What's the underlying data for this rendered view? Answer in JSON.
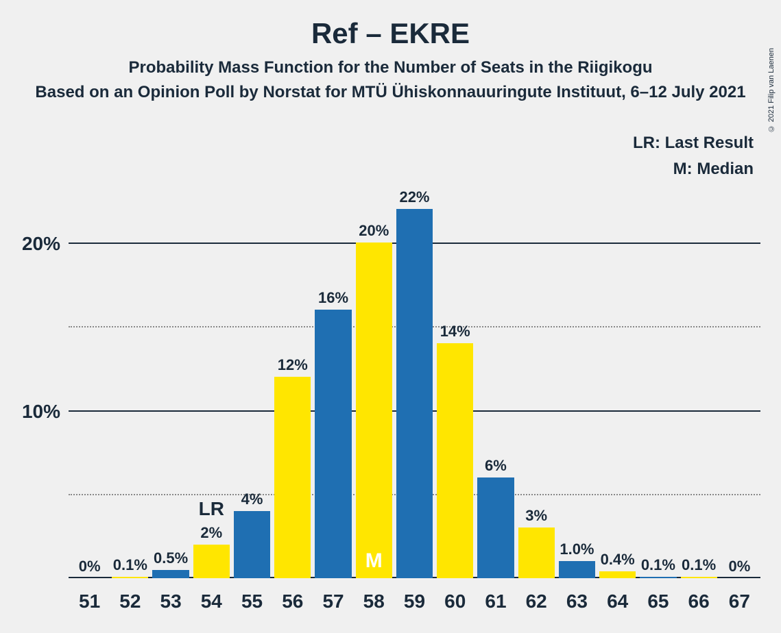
{
  "title": "Ref – EKRE",
  "subtitle": "Probability Mass Function for the Number of Seats in the Riigikogu",
  "subtitle2": "Based on an Opinion Poll by Norstat for MTÜ Ühiskonnauuringute Instituut, 6–12 July 2021",
  "copyright": "© 2021 Filip van Laenen",
  "legend": {
    "lr": "LR: Last Result",
    "m": "M: Median"
  },
  "chart": {
    "type": "bar",
    "ylim_max": 23,
    "y_ticks": [
      {
        "value": 20,
        "label": "20%",
        "style": "solid"
      },
      {
        "value": 15,
        "label": "",
        "style": "dotted"
      },
      {
        "value": 10,
        "label": "10%",
        "style": "solid"
      },
      {
        "value": 5,
        "label": "",
        "style": "dotted"
      }
    ],
    "colors": {
      "blue": "#1f6fb2",
      "yellow": "#ffe600"
    },
    "bars": [
      {
        "x": "51",
        "value": 0,
        "label": "0%",
        "color": "blue"
      },
      {
        "x": "52",
        "value": 0.1,
        "label": "0.1%",
        "color": "yellow"
      },
      {
        "x": "53",
        "value": 0.5,
        "label": "0.5%",
        "color": "blue"
      },
      {
        "x": "54",
        "value": 2,
        "label": "2%",
        "color": "yellow",
        "lr": true
      },
      {
        "x": "55",
        "value": 4,
        "label": "4%",
        "color": "blue"
      },
      {
        "x": "56",
        "value": 12,
        "label": "12%",
        "color": "yellow"
      },
      {
        "x": "57",
        "value": 16,
        "label": "16%",
        "color": "blue"
      },
      {
        "x": "58",
        "value": 20,
        "label": "20%",
        "color": "yellow",
        "median": true
      },
      {
        "x": "59",
        "value": 22,
        "label": "22%",
        "color": "blue"
      },
      {
        "x": "60",
        "value": 14,
        "label": "14%",
        "color": "yellow"
      },
      {
        "x": "61",
        "value": 6,
        "label": "6%",
        "color": "blue"
      },
      {
        "x": "62",
        "value": 3,
        "label": "3%",
        "color": "yellow"
      },
      {
        "x": "63",
        "value": 1.0,
        "label": "1.0%",
        "color": "blue"
      },
      {
        "x": "64",
        "value": 0.4,
        "label": "0.4%",
        "color": "yellow"
      },
      {
        "x": "65",
        "value": 0.1,
        "label": "0.1%",
        "color": "blue"
      },
      {
        "x": "66",
        "value": 0.1,
        "label": "0.1%",
        "color": "yellow"
      },
      {
        "x": "67",
        "value": 0,
        "label": "0%",
        "color": "blue"
      }
    ],
    "lr_text": "LR",
    "median_text": "M"
  }
}
